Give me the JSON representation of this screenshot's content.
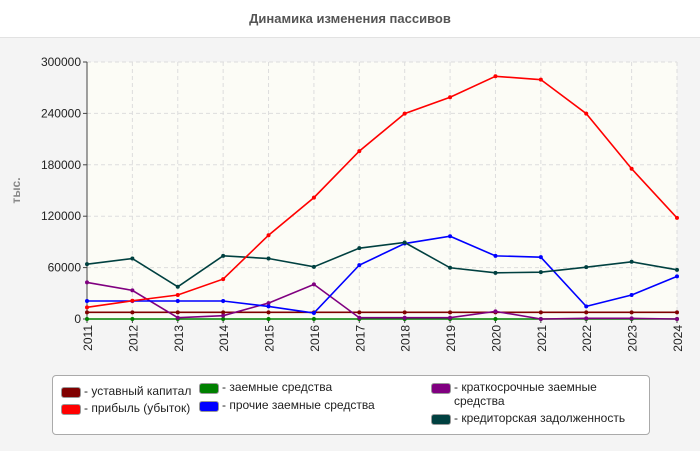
{
  "chart_data": {
    "type": "line",
    "title": "Динамика изменения пассивов",
    "ylabel": "тыс.",
    "xlabel": "",
    "ylim": [
      0,
      300000
    ],
    "yticks": [
      "0",
      "60000",
      "120000",
      "180000",
      "240000",
      "300000"
    ],
    "categories": [
      "2011",
      "2012",
      "2013",
      "2014",
      "2015",
      "2016",
      "2017",
      "2018",
      "2019",
      "2020",
      "2021",
      "2022",
      "2023",
      "2024"
    ],
    "grid": true,
    "legend": "bottom",
    "series": [
      {
        "name": "- заемные средства",
        "color": "#008000",
        "values": [
          0,
          0,
          0,
          0,
          0,
          0,
          0,
          0,
          0,
          0,
          0,
          0,
          0,
          0
        ]
      },
      {
        "name": "- уставный капитал",
        "color": "#800000",
        "values": [
          7800,
          7800,
          7800,
          7800,
          7800,
          7800,
          7800,
          7800,
          7800,
          7800,
          7800,
          7800,
          7800,
          7800
        ]
      },
      {
        "name": "- краткосрочные заемные средства",
        "color": "#800080",
        "values": [
          42700,
          33400,
          1500,
          3900,
          18600,
          40400,
          1500,
          1500,
          1500,
          8900,
          0,
          800,
          800,
          0
        ]
      },
      {
        "name": "- прочие заемные средства",
        "color": "#0000ff",
        "values": [
          21000,
          21000,
          21000,
          21000,
          14700,
          7000,
          62900,
          88100,
          96600,
          73700,
          72200,
          14700,
          28000,
          49700
        ]
      },
      {
        "name": "- кредиторская задолженность",
        "color": "#004040",
        "values": [
          64000,
          70600,
          37600,
          73700,
          70600,
          60900,
          82700,
          89300,
          59800,
          53900,
          54700,
          60500,
          66800,
          57400
        ]
      },
      {
        "name": "- прибыль (убыток)",
        "color": "#ff0000",
        "values": [
          13600,
          21300,
          28000,
          46600,
          97800,
          141700,
          196000,
          239800,
          258900,
          283300,
          279400,
          239800,
          175400,
          118000
        ]
      }
    ]
  }
}
